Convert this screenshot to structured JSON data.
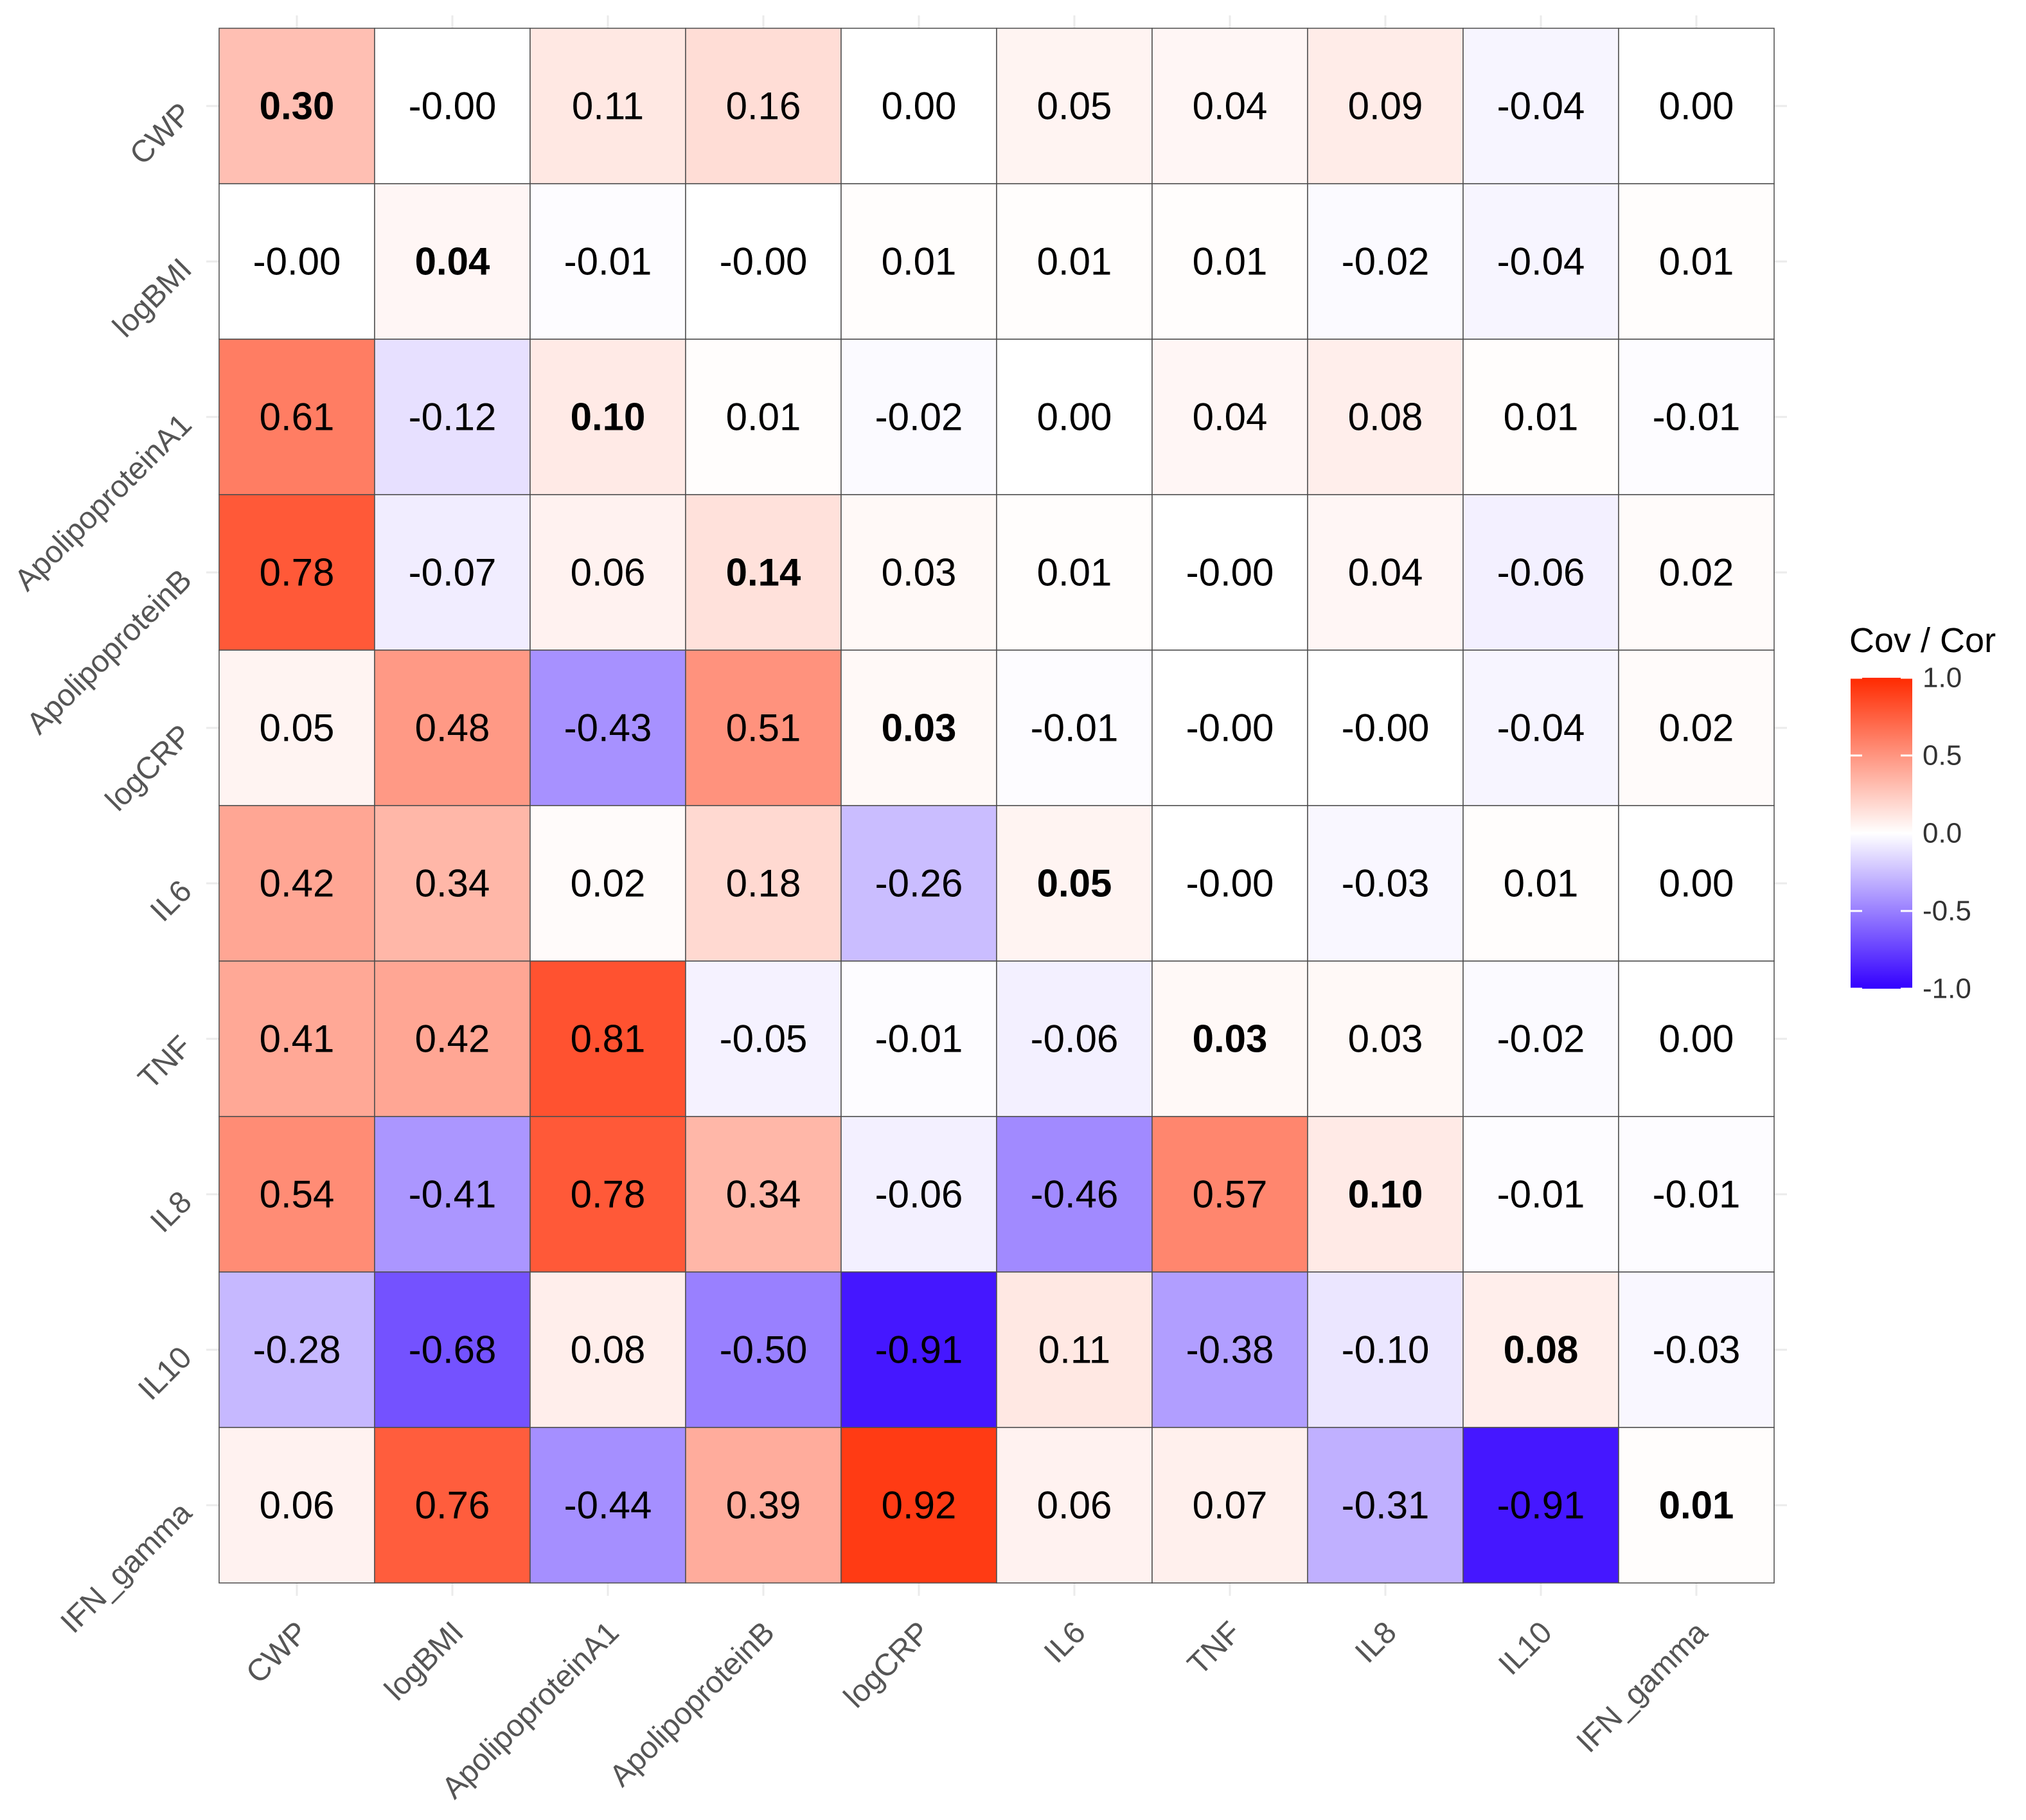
{
  "chart_data": {
    "type": "heatmap",
    "title": "",
    "xlabel": "",
    "ylabel": "",
    "x_categories": [
      "CWP",
      "logBMI",
      "ApolipoproteinA1",
      "ApolipoproteinB",
      "logCRP",
      "IL6",
      "TNF",
      "IL8",
      "IL10",
      "IFN_gamma"
    ],
    "y_categories": [
      "CWP",
      "logBMI",
      "ApolipoproteinA1",
      "ApolipoproteinB",
      "logCRP",
      "IL6",
      "TNF",
      "IL8",
      "IL10",
      "IFN_gamma"
    ],
    "values": [
      [
        0.3,
        -0.0,
        0.11,
        0.16,
        0.0,
        0.05,
        0.04,
        0.09,
        -0.04,
        0.0
      ],
      [
        -0.0,
        0.04,
        -0.01,
        -0.0,
        0.01,
        0.01,
        0.01,
        -0.02,
        -0.04,
        0.01
      ],
      [
        0.61,
        -0.12,
        0.1,
        0.01,
        -0.02,
        0.0,
        0.04,
        0.08,
        0.01,
        -0.01
      ],
      [
        0.78,
        -0.07,
        0.06,
        0.14,
        0.03,
        0.01,
        -0.0,
        0.04,
        -0.06,
        0.02
      ],
      [
        0.05,
        0.48,
        -0.43,
        0.51,
        0.03,
        -0.01,
        -0.0,
        -0.0,
        -0.04,
        0.02
      ],
      [
        0.42,
        0.34,
        0.02,
        0.18,
        -0.26,
        0.05,
        -0.0,
        -0.03,
        0.01,
        0.0
      ],
      [
        0.41,
        0.42,
        0.81,
        -0.05,
        -0.01,
        -0.06,
        0.03,
        0.03,
        -0.02,
        0.0
      ],
      [
        0.54,
        -0.41,
        0.78,
        0.34,
        -0.06,
        -0.46,
        0.57,
        0.1,
        -0.01,
        -0.01
      ],
      [
        -0.28,
        -0.68,
        0.08,
        -0.5,
        -0.91,
        0.11,
        -0.38,
        -0.1,
        0.08,
        -0.03
      ],
      [
        0.06,
        0.76,
        -0.44,
        0.39,
        0.92,
        0.06,
        0.07,
        -0.31,
        -0.91,
        0.01
      ]
    ],
    "labels": [
      [
        "0.30",
        "-0.00",
        "0.11",
        "0.16",
        "0.00",
        "0.05",
        "0.04",
        "0.09",
        "-0.04",
        "0.00"
      ],
      [
        "-0.00",
        "0.04",
        "-0.01",
        "-0.00",
        "0.01",
        "0.01",
        "0.01",
        "-0.02",
        "-0.04",
        "0.01"
      ],
      [
        "0.61",
        "-0.12",
        "0.10",
        "0.01",
        "-0.02",
        "0.00",
        "0.04",
        "0.08",
        "0.01",
        "-0.01"
      ],
      [
        "0.78",
        "-0.07",
        "0.06",
        "0.14",
        "0.03",
        "0.01",
        "-0.00",
        "0.04",
        "-0.06",
        "0.02"
      ],
      [
        "0.05",
        "0.48",
        "-0.43",
        "0.51",
        "0.03",
        "-0.01",
        "-0.00",
        "-0.00",
        "-0.04",
        "0.02"
      ],
      [
        "0.42",
        "0.34",
        "0.02",
        "0.18",
        "-0.26",
        "0.05",
        "-0.00",
        "-0.03",
        "0.01",
        "0.00"
      ],
      [
        "0.41",
        "0.42",
        "0.81",
        "-0.05",
        "-0.01",
        "-0.06",
        "0.03",
        "0.03",
        "-0.02",
        "0.00"
      ],
      [
        "0.54",
        "-0.41",
        "0.78",
        "0.34",
        "-0.06",
        "-0.46",
        "0.57",
        "0.10",
        "-0.01",
        "-0.01"
      ],
      [
        "-0.28",
        "-0.68",
        "0.08",
        "-0.50",
        "-0.91",
        "0.11",
        "-0.38",
        "-0.10",
        "0.08",
        "-0.03"
      ],
      [
        "0.06",
        "0.76",
        "-0.44",
        "0.39",
        "0.92",
        "0.06",
        "0.07",
        "-0.31",
        "-0.91",
        "0.01"
      ]
    ],
    "legend": {
      "title": "Cov / Cor",
      "position": "right",
      "ticks": [
        1.0,
        0.5,
        0.0,
        -0.5,
        -1.0
      ],
      "tick_labels": [
        "1.0",
        "0.5",
        "0.0",
        "-0.5",
        "-1.0"
      ],
      "range": [
        -1.0,
        1.0
      ],
      "colors": {
        "low": "#3300ff",
        "mid": "#ffffff",
        "high": "#ff2a00"
      }
    }
  }
}
